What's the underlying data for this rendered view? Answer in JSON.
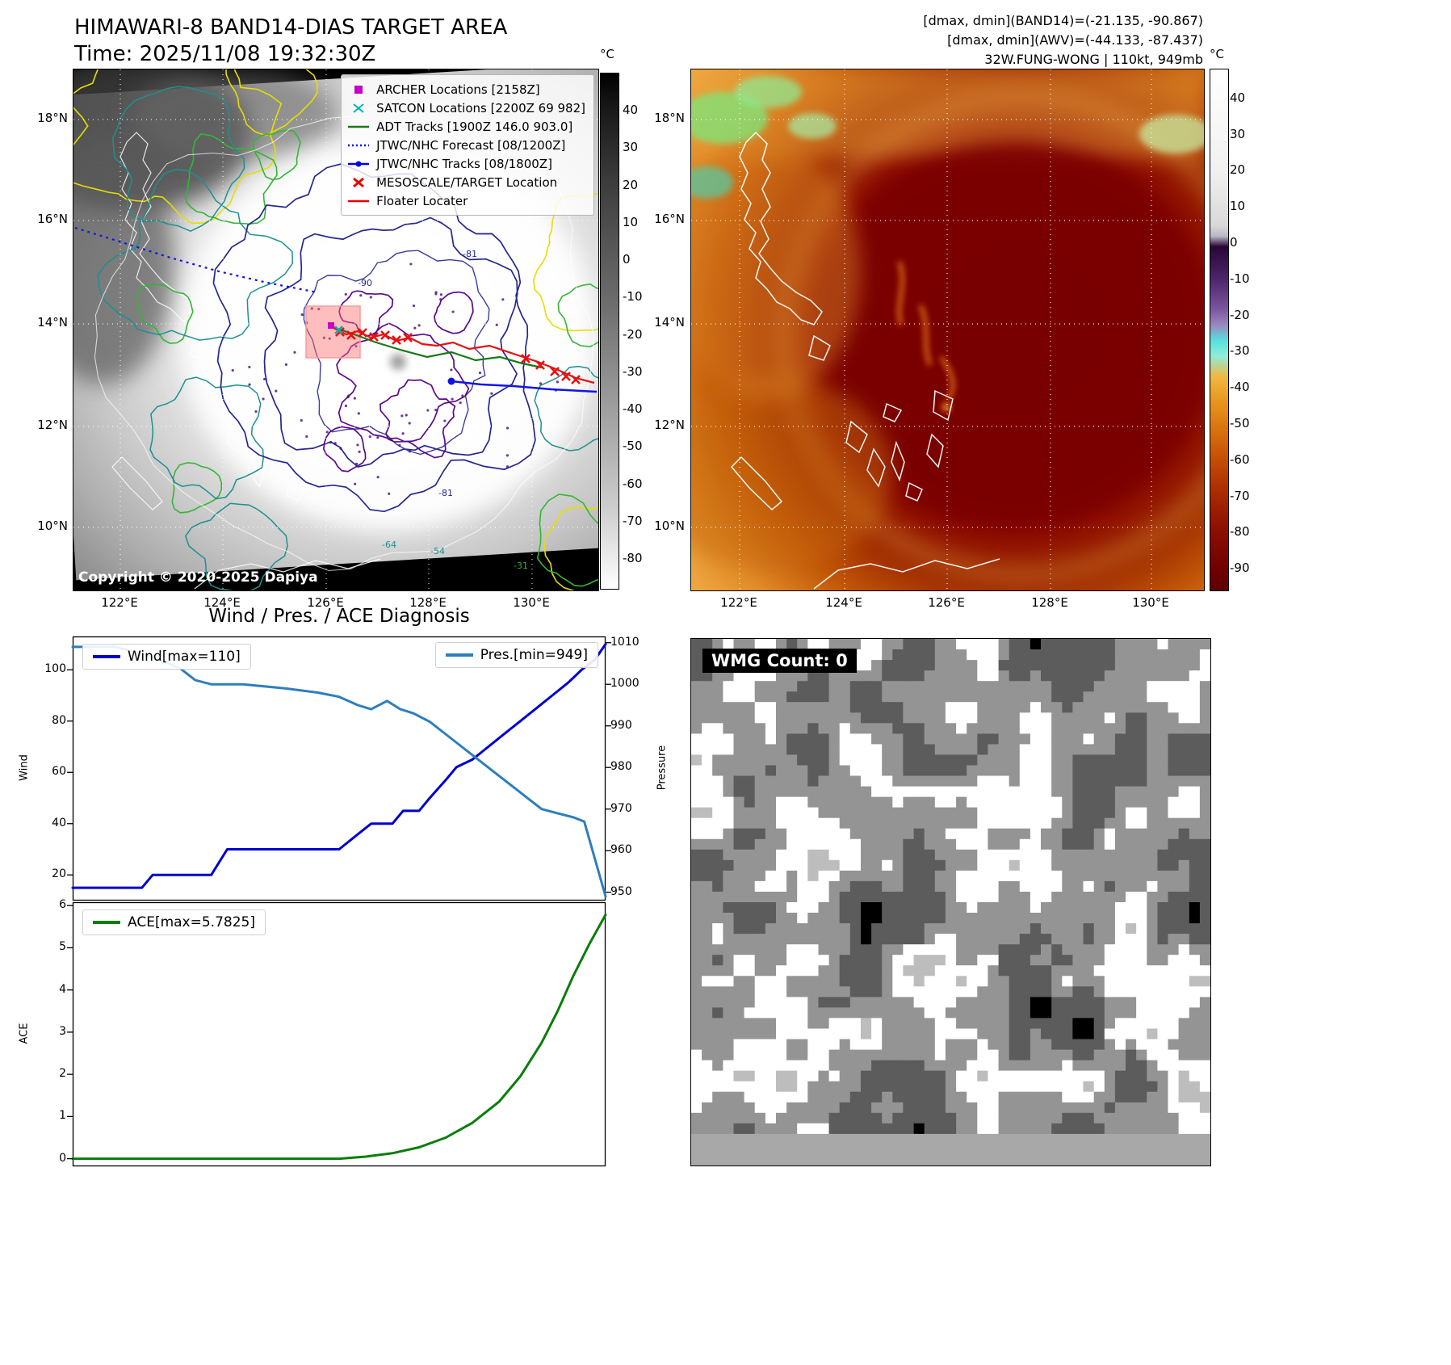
{
  "panel_band14": {
    "title": "HIMAWARI-8 BAND14-DIAS TARGET AREA",
    "time_label": "Time: 2025/11/08 19:32:30Z",
    "copyright": "Copyright © 2020-2025 Dapiya",
    "colorbar_unit": "°C",
    "colorbar_ticks": [
      40,
      30,
      20,
      10,
      0,
      -10,
      -20,
      -30,
      -40,
      -50,
      -60,
      -70,
      -80
    ],
    "lat_ticks": [
      "18°N",
      "16°N",
      "14°N",
      "12°N",
      "10°N"
    ],
    "lon_ticks": [
      "122°E",
      "124°E",
      "126°E",
      "128°E",
      "130°E"
    ],
    "contour_labels": [
      "-90",
      "-81",
      "-81",
      "-64",
      "-54",
      "-31"
    ],
    "legend": [
      {
        "label": "ARCHER Locations [2158Z]",
        "marker": "square",
        "color": "#c800c8"
      },
      {
        "label": "SATCON Locations [2200Z 69 982]",
        "marker": "x",
        "color": "#00b4b4"
      },
      {
        "label": "ADT Tracks [1900Z 146.0 903.0]",
        "marker": "line",
        "color": "#1a7a1a"
      },
      {
        "label": "JTWC/NHC Forecast [08/1200Z]",
        "marker": "dotted",
        "color": "#0000ee"
      },
      {
        "label": "JTWC/NHC Tracks [08/1800Z]",
        "marker": "line-dot",
        "color": "#0000ee"
      },
      {
        "label": "MESOSCALE/TARGET Location",
        "marker": "x-bold",
        "color": "#ee0000"
      },
      {
        "label": "Floater Locater",
        "marker": "line",
        "color": "#ee0000"
      }
    ]
  },
  "panel_awv": {
    "header_lines": [
      "[dmax, dmin](BAND14)=(-21.135, -90.867)",
      "[dmax, dmin](AWV)=(-44.133, -87.437)",
      "32W.FUNG-WONG | 110kt, 949mb"
    ],
    "colorbar_unit": "°C",
    "colorbar_ticks": [
      40,
      30,
      20,
      10,
      0,
      -10,
      -20,
      -30,
      -40,
      -50,
      -60,
      -70,
      -80,
      -90
    ],
    "lat_ticks": [
      "18°N",
      "16°N",
      "14°N",
      "12°N",
      "10°N"
    ],
    "lon_ticks": [
      "122°E",
      "124°E",
      "126°E",
      "128°E",
      "130°E"
    ]
  },
  "panel_wmg": {
    "label": "WMG Count: 0"
  },
  "chart_data": [
    {
      "type": "line",
      "title": "Wind / Pres. / ACE Diagnosis",
      "grid": false,
      "left_axis": {
        "label": "Wind",
        "ticks": [
          20,
          40,
          60,
          80,
          100
        ],
        "ylim": [
          10,
          113
        ]
      },
      "right_axis": {
        "label": "Pressure",
        "ticks": [
          950,
          960,
          970,
          980,
          990,
          1000,
          1010
        ],
        "ylim": [
          948,
          1011.5
        ]
      },
      "series": [
        {
          "name": "Wind[max=110]",
          "color": "#0000cd",
          "axis": "left",
          "x": [
            0,
            0.13,
            0.15,
            0.26,
            0.29,
            0.5,
            0.53,
            0.56,
            0.6,
            0.62,
            0.65,
            0.67,
            0.7,
            0.72,
            0.75,
            0.78,
            0.81,
            0.84,
            0.87,
            0.9,
            0.93,
            0.955,
            0.98,
            1.0
          ],
          "values": [
            15,
            15,
            20,
            20,
            30,
            30,
            35,
            40,
            40,
            45,
            45,
            50,
            57,
            62,
            65,
            70,
            75,
            80,
            85,
            90,
            95,
            100,
            104,
            110
          ]
        },
        {
          "name": "Pres.[min=949]",
          "color": "#2e7ebc",
          "axis": "right",
          "x": [
            0,
            0.08,
            0.14,
            0.2,
            0.23,
            0.26,
            0.32,
            0.4,
            0.46,
            0.5,
            0.535,
            0.56,
            0.59,
            0.615,
            0.64,
            0.67,
            0.7,
            0.73,
            0.76,
            0.79,
            0.82,
            0.85,
            0.88,
            0.91,
            0.94,
            0.96,
            0.98,
            1.0
          ],
          "values": [
            1009,
            1009,
            1007,
            1004,
            1001,
            1000,
            1000,
            999,
            998,
            997,
            995,
            994,
            996,
            994,
            993,
            991,
            988,
            985,
            982,
            979,
            976,
            973,
            970,
            969,
            968,
            967,
            958,
            949
          ]
        }
      ]
    },
    {
      "type": "line",
      "grid": false,
      "left_axis": {
        "label": "ACE",
        "ticks": [
          0,
          1,
          2,
          3,
          4,
          5,
          6
        ],
        "ylim": [
          -0.18,
          6.08
        ]
      },
      "series": [
        {
          "name": "ACE[max=5.7825]",
          "color": "#0a7d0a",
          "axis": "left",
          "x": [
            0,
            0.5,
            0.55,
            0.6,
            0.65,
            0.7,
            0.75,
            0.8,
            0.84,
            0.88,
            0.91,
            0.94,
            0.97,
            1.0
          ],
          "values": [
            0,
            0,
            0.05,
            0.13,
            0.27,
            0.5,
            0.85,
            1.35,
            1.95,
            2.75,
            3.5,
            4.35,
            5.1,
            5.7825
          ]
        }
      ]
    }
  ]
}
